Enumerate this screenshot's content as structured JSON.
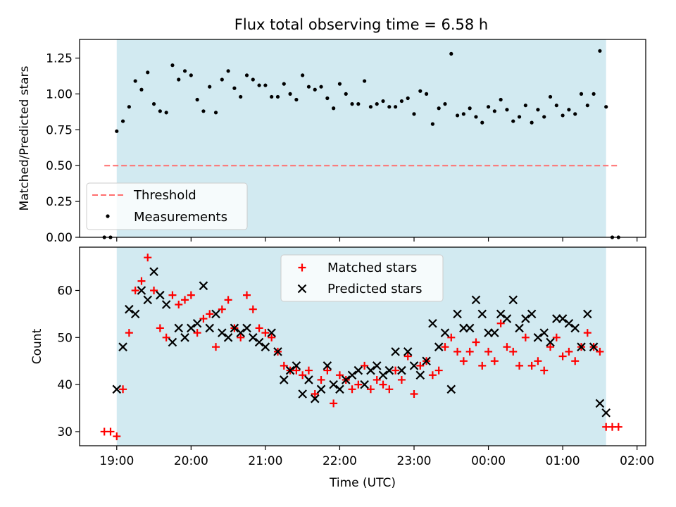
{
  "chart_data": [
    {
      "type": "scatter",
      "title": "Flux total observing time = 6.58 h",
      "xlabel": "",
      "ylabel": "Matched/Predicted stars",
      "xlim": [
        "18:30",
        "02:07"
      ],
      "ylim": [
        0,
        1.38
      ],
      "yticks": [
        0.0,
        0.25,
        0.5,
        0.75,
        1.0,
        1.25
      ],
      "ytick_labels": [
        "0.00",
        "0.25",
        "0.50",
        "0.75",
        "1.00",
        "1.25"
      ],
      "xticks": [
        "19:00",
        "20:00",
        "21:00",
        "22:00",
        "23:00",
        "00:00",
        "01:00",
        "02:00"
      ],
      "shaded_span": [
        "19:00",
        "01:35"
      ],
      "shaded_color": "#add8e6",
      "legend": {
        "placement": "lower-left",
        "entries": [
          "Threshold",
          "Measurements"
        ]
      },
      "threshold": {
        "name": "Threshold",
        "value": 0.5,
        "x_range": [
          "18:50",
          "01:45"
        ],
        "color": "#ff6e6e",
        "style": "dashed"
      },
      "series": [
        {
          "name": "Measurements",
          "color": "#000000",
          "points": [
            [
              "18:50",
              0.0
            ],
            [
              "18:55",
              0.0
            ],
            [
              "19:00",
              0.74
            ],
            [
              "19:05",
              0.81
            ],
            [
              "19:10",
              0.91
            ],
            [
              "19:15",
              1.09
            ],
            [
              "19:20",
              1.03
            ],
            [
              "19:25",
              1.15
            ],
            [
              "19:30",
              0.93
            ],
            [
              "19:35",
              0.88
            ],
            [
              "19:40",
              0.87
            ],
            [
              "19:45",
              1.2
            ],
            [
              "19:50",
              1.1
            ],
            [
              "19:55",
              1.16
            ],
            [
              "20:00",
              1.13
            ],
            [
              "20:05",
              0.96
            ],
            [
              "20:10",
              0.88
            ],
            [
              "20:15",
              1.05
            ],
            [
              "20:20",
              0.87
            ],
            [
              "20:25",
              1.1
            ],
            [
              "20:30",
              1.16
            ],
            [
              "20:35",
              1.04
            ],
            [
              "20:40",
              0.98
            ],
            [
              "20:45",
              1.13
            ],
            [
              "20:50",
              1.1
            ],
            [
              "20:55",
              1.06
            ],
            [
              "21:00",
              1.06
            ],
            [
              "21:05",
              0.98
            ],
            [
              "21:10",
              0.98
            ],
            [
              "21:15",
              1.07
            ],
            [
              "21:20",
              1.0
            ],
            [
              "21:25",
              0.96
            ],
            [
              "21:30",
              1.13
            ],
            [
              "21:35",
              1.05
            ],
            [
              "21:40",
              1.03
            ],
            [
              "21:45",
              1.05
            ],
            [
              "21:50",
              0.97
            ],
            [
              "21:55",
              0.9
            ],
            [
              "22:00",
              1.07
            ],
            [
              "22:05",
              1.0
            ],
            [
              "22:10",
              0.93
            ],
            [
              "22:15",
              0.93
            ],
            [
              "22:20",
              1.09
            ],
            [
              "22:25",
              0.91
            ],
            [
              "22:30",
              0.93
            ],
            [
              "22:35",
              0.95
            ],
            [
              "22:40",
              0.91
            ],
            [
              "22:45",
              0.91
            ],
            [
              "22:50",
              0.95
            ],
            [
              "22:55",
              0.97
            ],
            [
              "23:00",
              0.86
            ],
            [
              "23:05",
              1.02
            ],
            [
              "23:10",
              1.0
            ],
            [
              "23:15",
              0.79
            ],
            [
              "23:20",
              0.9
            ],
            [
              "23:25",
              0.93
            ],
            [
              "23:30",
              1.28
            ],
            [
              "23:35",
              0.85
            ],
            [
              "23:40",
              0.86
            ],
            [
              "23:45",
              0.9
            ],
            [
              "23:50",
              0.84
            ],
            [
              "23:55",
              0.8
            ],
            [
              "00:00",
              0.91
            ],
            [
              "00:05",
              0.88
            ],
            [
              "00:10",
              0.96
            ],
            [
              "00:15",
              0.89
            ],
            [
              "00:20",
              0.81
            ],
            [
              "00:25",
              0.84
            ],
            [
              "00:30",
              0.92
            ],
            [
              "00:35",
              0.8
            ],
            [
              "00:40",
              0.89
            ],
            [
              "00:45",
              0.84
            ],
            [
              "00:50",
              0.98
            ],
            [
              "00:55",
              0.92
            ],
            [
              "01:00",
              0.85
            ],
            [
              "01:05",
              0.89
            ],
            [
              "01:10",
              0.86
            ],
            [
              "01:15",
              1.0
            ],
            [
              "01:20",
              0.92
            ],
            [
              "01:25",
              1.0
            ],
            [
              "01:30",
              1.3
            ],
            [
              "01:35",
              0.91
            ],
            [
              "01:40",
              0.0
            ],
            [
              "01:45",
              0.0
            ]
          ]
        }
      ]
    },
    {
      "type": "scatter",
      "title": "",
      "xlabel": "Time (UTC)",
      "ylabel": "Count",
      "xlim": [
        "18:30",
        "02:07"
      ],
      "ylim": [
        27,
        69.2
      ],
      "yticks": [
        30,
        40,
        50,
        60
      ],
      "ytick_labels": [
        "30",
        "40",
        "50",
        "60"
      ],
      "xticks": [
        "19:00",
        "20:00",
        "21:00",
        "22:00",
        "23:00",
        "00:00",
        "01:00",
        "02:00"
      ],
      "xtick_labels": [
        "19:00",
        "20:00",
        "21:00",
        "22:00",
        "23:00",
        "00:00",
        "01:00",
        "02:00"
      ],
      "shaded_span": [
        "19:00",
        "01:35"
      ],
      "shaded_color": "#add8e6",
      "legend": {
        "placement": "upper-center",
        "entries": [
          "Matched stars",
          "Predicted stars"
        ]
      },
      "series": [
        {
          "name": "Matched stars",
          "marker": "plus",
          "color": "#ff0000",
          "points": [
            [
              "18:50",
              30
            ],
            [
              "18:55",
              30
            ],
            [
              "19:00",
              29
            ],
            [
              "19:05",
              39
            ],
            [
              "19:10",
              51
            ],
            [
              "19:15",
              60
            ],
            [
              "19:20",
              62
            ],
            [
              "19:25",
              67
            ],
            [
              "19:30",
              60
            ],
            [
              "19:35",
              52
            ],
            [
              "19:40",
              50
            ],
            [
              "19:45",
              59
            ],
            [
              "19:50",
              57
            ],
            [
              "19:55",
              58
            ],
            [
              "20:00",
              59
            ],
            [
              "20:05",
              51
            ],
            [
              "20:10",
              54
            ],
            [
              "20:15",
              55
            ],
            [
              "20:20",
              48
            ],
            [
              "20:25",
              56
            ],
            [
              "20:30",
              58
            ],
            [
              "20:35",
              52
            ],
            [
              "20:40",
              50
            ],
            [
              "20:45",
              59
            ],
            [
              "20:50",
              56
            ],
            [
              "20:55",
              52
            ],
            [
              "21:00",
              51
            ],
            [
              "21:05",
              50
            ],
            [
              "21:10",
              47
            ],
            [
              "21:15",
              44
            ],
            [
              "21:20",
              43
            ],
            [
              "21:25",
              43
            ],
            [
              "21:30",
              42
            ],
            [
              "21:35",
              43
            ],
            [
              "21:40",
              38
            ],
            [
              "21:45",
              41
            ],
            [
              "21:50",
              43
            ],
            [
              "21:55",
              36
            ],
            [
              "22:00",
              42
            ],
            [
              "22:05",
              41
            ],
            [
              "22:10",
              39
            ],
            [
              "22:15",
              40
            ],
            [
              "22:20",
              44
            ],
            [
              "22:25",
              39
            ],
            [
              "22:30",
              41
            ],
            [
              "22:35",
              40
            ],
            [
              "22:40",
              39
            ],
            [
              "22:45",
              43
            ],
            [
              "22:50",
              41
            ],
            [
              "22:55",
              46
            ],
            [
              "23:00",
              38
            ],
            [
              "23:05",
              44
            ],
            [
              "23:10",
              45
            ],
            [
              "23:15",
              42
            ],
            [
              "23:20",
              43
            ],
            [
              "23:25",
              48
            ],
            [
              "23:30",
              50
            ],
            [
              "23:35",
              47
            ],
            [
              "23:40",
              45
            ],
            [
              "23:45",
              47
            ],
            [
              "23:50",
              49
            ],
            [
              "23:55",
              44
            ],
            [
              "00:00",
              47
            ],
            [
              "00:05",
              45
            ],
            [
              "00:10",
              53
            ],
            [
              "00:15",
              48
            ],
            [
              "00:20",
              47
            ],
            [
              "00:25",
              44
            ],
            [
              "00:30",
              50
            ],
            [
              "00:35",
              44
            ],
            [
              "00:40",
              45
            ],
            [
              "00:45",
              43
            ],
            [
              "00:50",
              48
            ],
            [
              "00:55",
              50
            ],
            [
              "01:00",
              46
            ],
            [
              "01:05",
              47
            ],
            [
              "01:10",
              45
            ],
            [
              "01:15",
              48
            ],
            [
              "01:20",
              51
            ],
            [
              "01:25",
              48
            ],
            [
              "01:30",
              47
            ],
            [
              "01:35",
              31
            ],
            [
              "01:40",
              31
            ],
            [
              "01:45",
              31
            ]
          ]
        },
        {
          "name": "Predicted stars",
          "marker": "x",
          "color": "#000000",
          "points": [
            [
              "19:00",
              39
            ],
            [
              "19:05",
              48
            ],
            [
              "19:10",
              56
            ],
            [
              "19:15",
              55
            ],
            [
              "19:20",
              60
            ],
            [
              "19:25",
              58
            ],
            [
              "19:30",
              64
            ],
            [
              "19:35",
              59
            ],
            [
              "19:40",
              57
            ],
            [
              "19:45",
              49
            ],
            [
              "19:50",
              52
            ],
            [
              "19:55",
              50
            ],
            [
              "20:00",
              52
            ],
            [
              "20:05",
              53
            ],
            [
              "20:10",
              61
            ],
            [
              "20:15",
              52
            ],
            [
              "20:20",
              55
            ],
            [
              "20:25",
              51
            ],
            [
              "20:30",
              50
            ],
            [
              "20:35",
              52
            ],
            [
              "20:40",
              51
            ],
            [
              "20:45",
              52
            ],
            [
              "20:50",
              50
            ],
            [
              "20:55",
              49
            ],
            [
              "21:00",
              48
            ],
            [
              "21:05",
              51
            ],
            [
              "21:10",
              47
            ],
            [
              "21:15",
              41
            ],
            [
              "21:20",
              43
            ],
            [
              "21:25",
              44
            ],
            [
              "21:30",
              38
            ],
            [
              "21:35",
              41
            ],
            [
              "21:40",
              37
            ],
            [
              "21:45",
              39
            ],
            [
              "21:50",
              44
            ],
            [
              "21:55",
              40
            ],
            [
              "22:00",
              39
            ],
            [
              "22:05",
              41
            ],
            [
              "22:10",
              42
            ],
            [
              "22:15",
              43
            ],
            [
              "22:20",
              40
            ],
            [
              "22:25",
              43
            ],
            [
              "22:30",
              44
            ],
            [
              "22:35",
              42
            ],
            [
              "22:40",
              43
            ],
            [
              "22:45",
              47
            ],
            [
              "22:50",
              43
            ],
            [
              "22:55",
              47
            ],
            [
              "23:00",
              44
            ],
            [
              "23:05",
              42
            ],
            [
              "23:10",
              45
            ],
            [
              "23:15",
              53
            ],
            [
              "23:20",
              48
            ],
            [
              "23:25",
              51
            ],
            [
              "23:30",
              39
            ],
            [
              "23:35",
              55
            ],
            [
              "23:40",
              52
            ],
            [
              "23:45",
              52
            ],
            [
              "23:50",
              58
            ],
            [
              "23:55",
              55
            ],
            [
              "00:00",
              51
            ],
            [
              "00:05",
              51
            ],
            [
              "00:10",
              55
            ],
            [
              "00:15",
              54
            ],
            [
              "00:20",
              58
            ],
            [
              "00:25",
              52
            ],
            [
              "00:30",
              54
            ],
            [
              "00:35",
              55
            ],
            [
              "00:40",
              50
            ],
            [
              "00:45",
              51
            ],
            [
              "00:50",
              49
            ],
            [
              "00:55",
              54
            ],
            [
              "01:00",
              54
            ],
            [
              "01:05",
              53
            ],
            [
              "01:10",
              52
            ],
            [
              "01:15",
              48
            ],
            [
              "01:20",
              55
            ],
            [
              "01:25",
              48
            ],
            [
              "01:30",
              36
            ],
            [
              "01:35",
              34
            ]
          ]
        }
      ]
    }
  ]
}
